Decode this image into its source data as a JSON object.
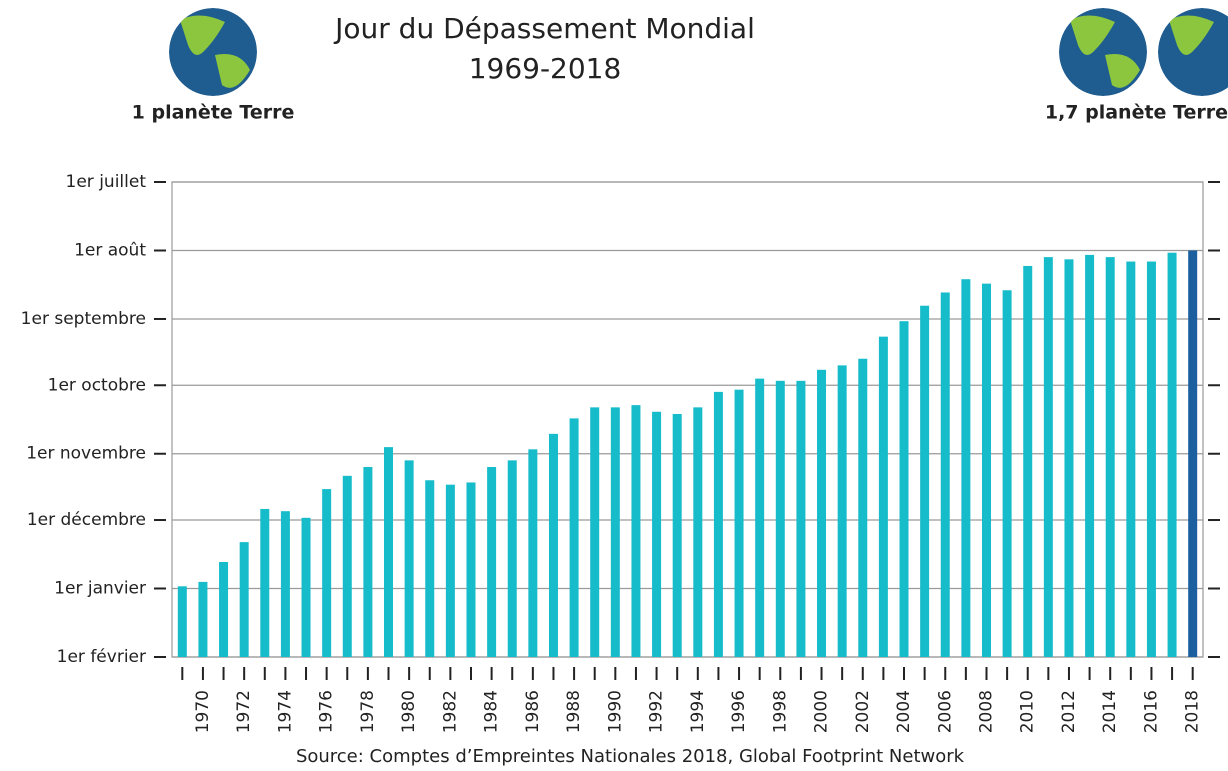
{
  "chart_data": {
    "type": "bar",
    "title": "Jour du Dépassement Mondial",
    "subtitle": "1969-2018",
    "annotations": [
      "1 planète Terre",
      "1,7 planète Terre"
    ],
    "source": "Source: Comptes d’Empreintes Nationales 2018, Global Footprint Network",
    "categories": [
      null,
      "1970",
      null,
      "1972",
      null,
      "1974",
      null,
      "1976",
      null,
      "1978",
      null,
      "1980",
      null,
      "1982",
      null,
      "1984",
      null,
      "1986",
      null,
      "1988",
      null,
      "1990",
      null,
      "1992",
      null,
      "1994",
      null,
      "1996",
      null,
      "1998",
      null,
      "2000",
      null,
      "2002",
      null,
      "2004",
      null,
      "2006",
      null,
      "2008",
      null,
      "2010",
      null,
      "2012",
      null,
      "2014",
      null,
      "2016",
      null,
      "2018"
    ],
    "values": [
      365,
      363,
      354,
      345,
      330,
      331,
      334,
      321,
      315,
      311,
      302,
      308,
      317,
      319,
      318,
      311,
      308,
      303,
      296,
      289,
      284,
      284,
      283,
      286,
      287,
      284,
      277,
      276,
      271,
      272,
      272,
      267,
      265,
      262,
      252,
      245,
      238,
      232,
      226,
      228,
      231,
      220,
      216,
      217,
      215,
      216,
      218,
      218,
      214,
      213
    ],
    "colors": [
      "#17bccb",
      "#17bccb",
      "#17bccb",
      "#17bccb",
      "#17bccb",
      "#17bccb",
      "#17bccb",
      "#17bccb",
      "#17bccb",
      "#17bccb",
      "#17bccb",
      "#17bccb",
      "#17bccb",
      "#17bccb",
      "#17bccb",
      "#17bccb",
      "#17bccb",
      "#17bccb",
      "#17bccb",
      "#17bccb",
      "#17bccb",
      "#17bccb",
      "#17bccb",
      "#17bccb",
      "#17bccb",
      "#17bccb",
      "#17bccb",
      "#17bccb",
      "#17bccb",
      "#17bccb",
      "#17bccb",
      "#17bccb",
      "#17bccb",
      "#17bccb",
      "#17bccb",
      "#17bccb",
      "#17bccb",
      "#17bccb",
      "#17bccb",
      "#17bccb",
      "#17bccb",
      "#17bccb",
      "#17bccb",
      "#17bccb",
      "#17bccb",
      "#17bccb",
      "#17bccb",
      "#17bccb",
      "#17bccb",
      "#1b5f9e"
    ],
    "ylim": [
      397,
      182
    ],
    "yticks": [
      {
        "value": 182,
        "label": "1er juillet"
      },
      {
        "value": 213,
        "label": "1er août"
      },
      {
        "value": 244,
        "label": "1er septembre"
      },
      {
        "value": 274,
        "label": "1er octobre"
      },
      {
        "value": 305,
        "label": "1er novembre"
      },
      {
        "value": 335,
        "label": "1er décembre"
      },
      {
        "value": 366,
        "label": "1er janvier"
      },
      {
        "value": 397,
        "label": "1er février"
      }
    ],
    "grid": true
  }
}
